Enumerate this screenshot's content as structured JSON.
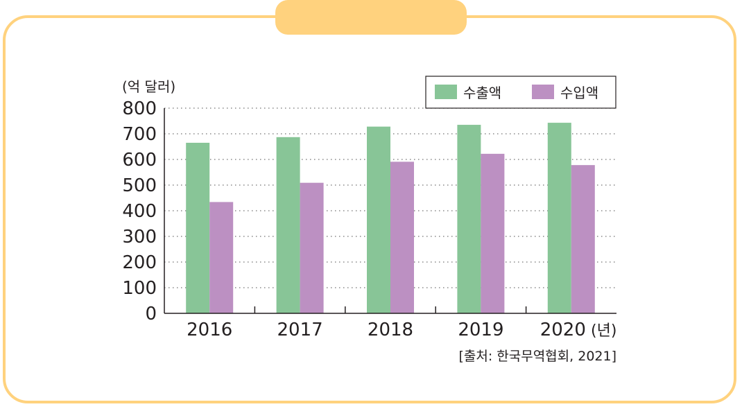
{
  "colors": {
    "frame": "#ffd27e",
    "export": "#88c597",
    "import": "#bc90c2",
    "grid": "#888888"
  },
  "chart_data": {
    "type": "bar",
    "categories": [
      "2016",
      "2017",
      "2018",
      "2019",
      "2020"
    ],
    "series": [
      {
        "name": "수출액",
        "values": [
          665,
          687,
          728,
          735,
          743
        ]
      },
      {
        "name": "수입액",
        "values": [
          434,
          509,
          591,
          622,
          578
        ]
      }
    ],
    "ylim": [
      0,
      800
    ],
    "yticks": [
      "0",
      "100",
      "200",
      "300",
      "400",
      "500",
      "600",
      "700",
      "800"
    ],
    "ylabel": "(억 달러)",
    "xunit": "(년)",
    "source": "[출처: 한국무역협회,  2021]",
    "grid": "dotted horizontal",
    "legend_position": "top-right"
  }
}
